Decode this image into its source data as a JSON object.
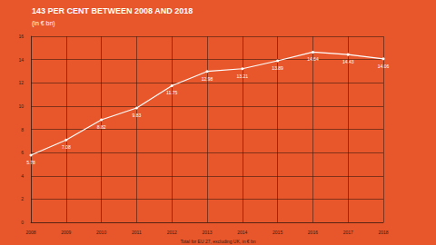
{
  "chart_data": {
    "type": "line",
    "title": "143 PER CENT BETWEEN 2008 AND 2018",
    "subtitle": "(in € bn)",
    "annotations": [
      "Total for EU 27, excluding UK, in € bn"
    ],
    "categories": [
      "2008",
      "2009",
      "2010",
      "2011",
      "2012",
      "2013",
      "2014",
      "2015",
      "2016",
      "2017",
      "2018"
    ],
    "values": [
      5.78,
      7.08,
      8.82,
      9.83,
      11.75,
      12.98,
      13.21,
      13.89,
      14.64,
      14.43,
      14.06
    ],
    "color": "#ffffff",
    "ylim": [
      0,
      16
    ],
    "yticks": [
      0,
      2,
      4,
      6,
      8,
      10,
      12,
      14,
      16
    ],
    "grid": true,
    "data_labels": true,
    "marker": "circle"
  }
}
